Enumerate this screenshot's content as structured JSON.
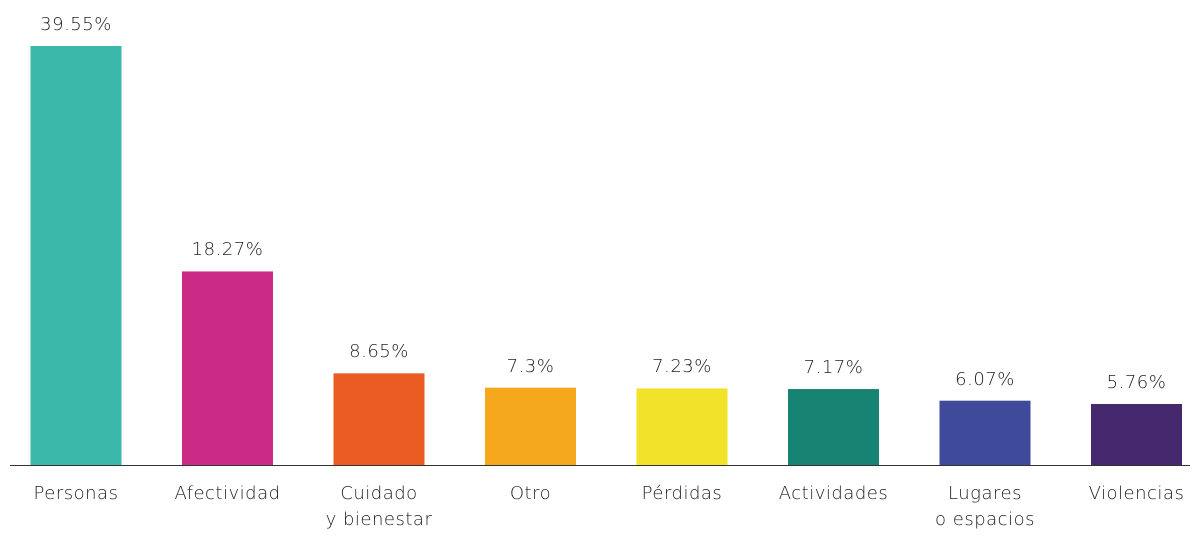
{
  "chart_data": {
    "type": "bar",
    "categories": [
      "Personas",
      "Afectividad",
      "Cuidado\ny bienestar",
      "Otro",
      "Pérdidas",
      "Actividades",
      "Lugares\no espacios",
      "Violencias"
    ],
    "series": [
      {
        "values": [
          39.55,
          18.27,
          8.65,
          7.3,
          7.23,
          7.17,
          6.07,
          5.76
        ],
        "value_labels": [
          "39.55%",
          "18.27%",
          "8.65%",
          "7.3%",
          "7.23%",
          "7.17%",
          "6.07%",
          "5.76%"
        ],
        "colors": [
          "#3bb8a9",
          "#cc2a87",
          "#ea5c21",
          "#f5a81c",
          "#f0e32a",
          "#178373",
          "#3f4a9a",
          "#46286e"
        ]
      }
    ]
  }
}
